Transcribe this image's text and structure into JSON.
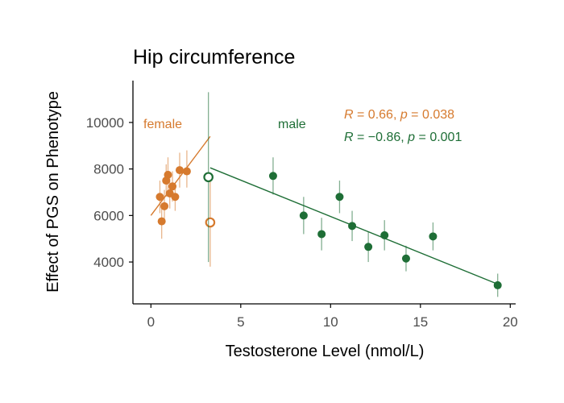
{
  "chart_data": {
    "type": "scatter",
    "title": "Hip circumference",
    "xlabel": "Testosterone Level (nmol/L)",
    "ylabel": "Effect of PGS on Phenotype",
    "xlim": [
      -1,
      20.3
    ],
    "ylim": [
      2200,
      11800
    ],
    "xticks": [
      0,
      5,
      10,
      15,
      20
    ],
    "yticks": [
      4000,
      6000,
      8000,
      10000
    ],
    "grid": false,
    "legend": "none",
    "series": [
      {
        "name": "female",
        "color": "#d67a2e",
        "points": [
          {
            "x": 0.5,
            "y": 6800,
            "lo": 6100,
            "hi": 7500
          },
          {
            "x": 0.6,
            "y": 5750,
            "lo": 5000,
            "hi": 6500
          },
          {
            "x": 0.75,
            "y": 6400,
            "lo": 5700,
            "hi": 7100
          },
          {
            "x": 0.85,
            "y": 7500,
            "lo": 6800,
            "hi": 8200
          },
          {
            "x": 0.95,
            "y": 7750,
            "lo": 7000,
            "hi": 8500
          },
          {
            "x": 1.05,
            "y": 6950,
            "lo": 6300,
            "hi": 7600
          },
          {
            "x": 1.2,
            "y": 7250,
            "lo": 6600,
            "hi": 7900
          },
          {
            "x": 1.35,
            "y": 6800,
            "lo": 6200,
            "hi": 7400
          },
          {
            "x": 1.6,
            "y": 7950,
            "lo": 7200,
            "hi": 8700
          },
          {
            "x": 2.0,
            "y": 7900,
            "lo": 7200,
            "hi": 8800
          },
          {
            "x": 3.3,
            "y": 5700,
            "lo": 3800,
            "hi": 7700,
            "open": true
          }
        ],
        "fit": {
          "x": [
            0,
            3.3
          ],
          "y": [
            6000,
            9400
          ]
        },
        "label": "female",
        "stat": {
          "r": "0.66",
          "p": "0.038"
        }
      },
      {
        "name": "male",
        "color": "#1e6e36",
        "points": [
          {
            "x": 3.2,
            "y": 7650,
            "lo": 4000,
            "hi": 11300,
            "open": true
          },
          {
            "x": 6.8,
            "y": 7700,
            "lo": 6900,
            "hi": 8500
          },
          {
            "x": 8.5,
            "y": 6000,
            "lo": 5200,
            "hi": 6800
          },
          {
            "x": 9.5,
            "y": 5200,
            "lo": 4500,
            "hi": 5900
          },
          {
            "x": 10.5,
            "y": 6800,
            "lo": 6100,
            "hi": 7500
          },
          {
            "x": 11.2,
            "y": 5550,
            "lo": 4900,
            "hi": 6200
          },
          {
            "x": 12.1,
            "y": 4650,
            "lo": 4000,
            "hi": 5300
          },
          {
            "x": 13.0,
            "y": 5150,
            "lo": 4500,
            "hi": 5800
          },
          {
            "x": 14.2,
            "y": 4150,
            "lo": 3600,
            "hi": 4700
          },
          {
            "x": 15.7,
            "y": 5100,
            "lo": 4500,
            "hi": 5700
          },
          {
            "x": 19.3,
            "y": 3000,
            "lo": 2500,
            "hi": 3500
          }
        ],
        "fit": {
          "x": [
            3.3,
            19.3
          ],
          "y": [
            8050,
            3050
          ]
        },
        "label": "male",
        "stat": {
          "r": "−0.86",
          "p": "0.001"
        }
      }
    ],
    "annotations": {
      "female_label": "female",
      "male_label": "male",
      "r_letter": "R",
      "p_letter": "p",
      "equals": " = ",
      "sep": ", ",
      "female_r": "0.66",
      "female_p": "0.038",
      "male_r": "−0.86",
      "male_p": "0.001"
    }
  }
}
